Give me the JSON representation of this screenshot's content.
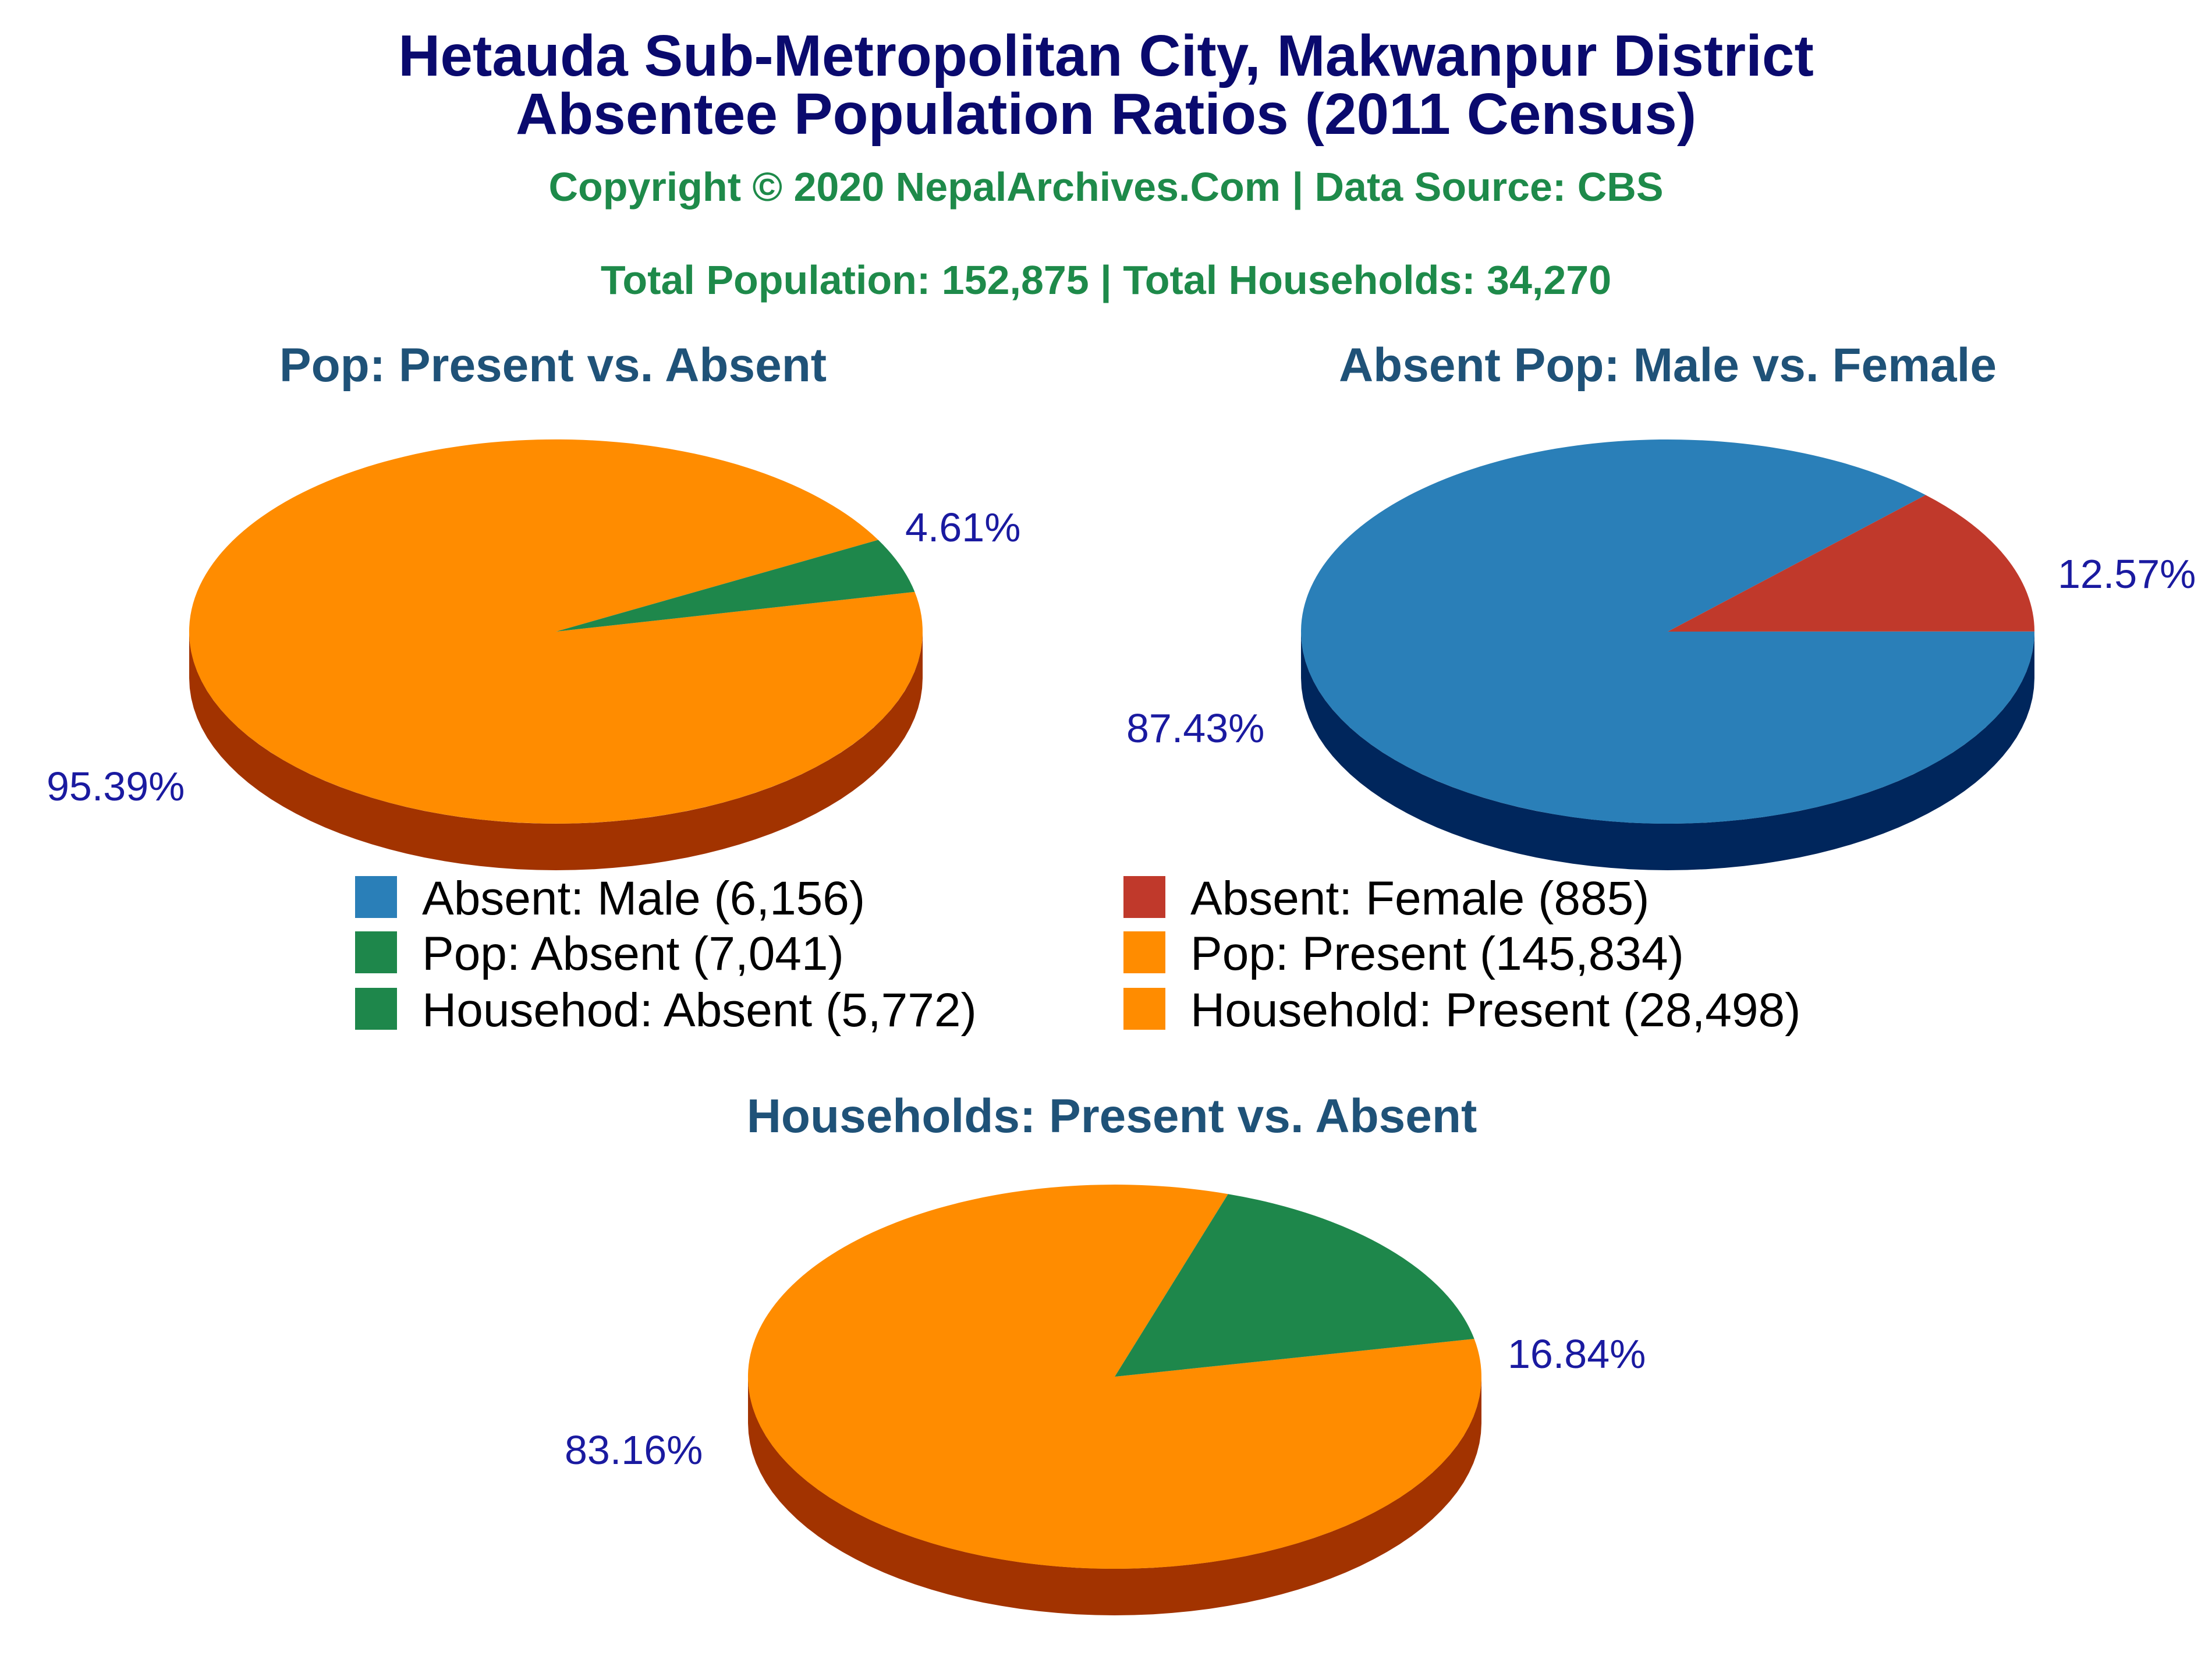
{
  "header": {
    "title_line1": "Hetauda Sub-Metropolitan City, Makwanpur District",
    "title_line2": "Absentee Population Ratios (2011 Census)",
    "copyright": "Copyright © 2020 NepalArchives.Com | Data Source: CBS",
    "totals": "Total Population: 152,875 | Total Households: 34,270"
  },
  "chart_data": [
    {
      "type": "pie",
      "title": "Pop: Present vs. Absent",
      "slices": [
        {
          "label": "Pop: Present (145,834)",
          "value": 145834,
          "percent_label": "95.39%",
          "color": "#ff8c00",
          "side_color": "#a23300"
        },
        {
          "label": "Pop: Absent (7,041)",
          "value": 7041,
          "percent_label": "4.61%",
          "color": "#1e874b",
          "side_color": "#003d10"
        }
      ]
    },
    {
      "type": "pie",
      "title": "Absent Pop: Male vs. Female",
      "slices": [
        {
          "label": "Absent: Male (6,156)",
          "value": 6156,
          "percent_label": "87.43%",
          "color": "#2a7fb8",
          "side_color": "#00265c"
        },
        {
          "label": "Absent: Female (885)",
          "value": 885,
          "percent_label": "12.57%",
          "color": "#c0392b",
          "side_color": "#5a0c08"
        }
      ]
    },
    {
      "type": "pie",
      "title": "Households: Present vs. Absent",
      "slices": [
        {
          "label": "Household: Present (28,498)",
          "value": 28498,
          "percent_label": "83.16%",
          "color": "#ff8c00",
          "side_color": "#a23300"
        },
        {
          "label": "Househod: Absent (5,772)",
          "value": 5772,
          "percent_label": "16.84%",
          "color": "#1e874b",
          "side_color": "#003d10"
        }
      ]
    }
  ],
  "legend": [
    {
      "label": "Absent: Male (6,156)",
      "color": "#2a7fb8"
    },
    {
      "label": "Absent: Female (885)",
      "color": "#c0392b"
    },
    {
      "label": "Pop: Absent (7,041)",
      "color": "#1e874b"
    },
    {
      "label": "Pop: Present (145,834)",
      "color": "#ff8c00"
    },
    {
      "label": "Househod: Absent (5,772)",
      "color": "#1e874b"
    },
    {
      "label": "Household: Present (28,498)",
      "color": "#ff8c00"
    }
  ]
}
